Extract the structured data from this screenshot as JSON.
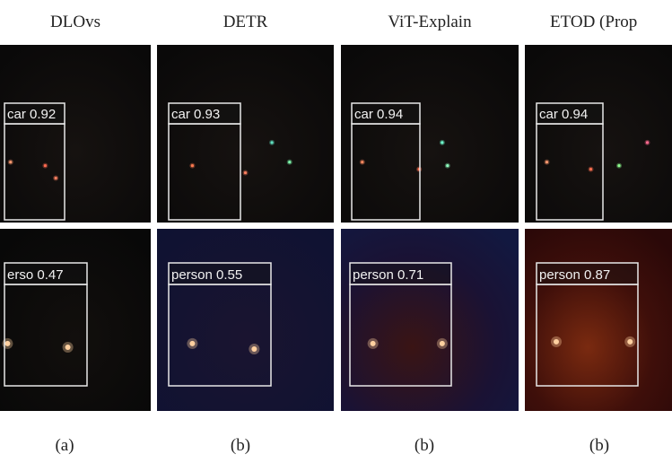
{
  "figure": {
    "columns": [
      {
        "header": "DLOvs",
        "rows": [
          {
            "label": "car 0.92"
          },
          {
            "label": "erso 0.47"
          }
        ],
        "caption": "(a)"
      },
      {
        "header": "DETR",
        "rows": [
          {
            "label": "car 0.93"
          },
          {
            "label": "person 0.55"
          }
        ],
        "caption": "(b)"
      },
      {
        "header": "ViT-Explain",
        "rows": [
          {
            "label": "car 0.94"
          },
          {
            "label": "person 0.71"
          }
        ],
        "caption": "(b)"
      },
      {
        "header": "ETOD (Prop",
        "rows": [
          {
            "label": "car 0.94"
          },
          {
            "label": "person 0.87"
          }
        ],
        "caption": "(b)"
      }
    ]
  }
}
